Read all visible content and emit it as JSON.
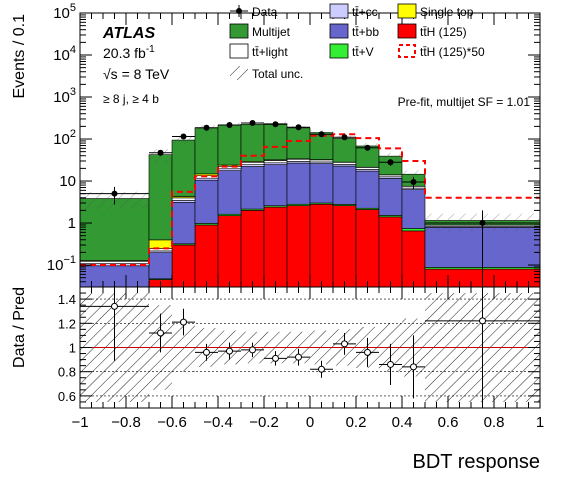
{
  "chart_data": [
    {
      "type": "bar",
      "panel": "main",
      "ylabel": "Events / 0.1",
      "log_y": true,
      "ylim": [
        0.03,
        100000
      ],
      "xlim": [
        -1,
        1
      ],
      "y_ticks": [
        {
          "v": 0.1,
          "base": "10",
          "exp": "−1"
        },
        {
          "v": 1,
          "label": "1"
        },
        {
          "v": 10,
          "label": "10"
        },
        {
          "v": 100,
          "base": "10",
          "exp": "2"
        },
        {
          "v": 1000,
          "base": "10",
          "exp": "3"
        },
        {
          "v": 10000,
          "base": "10",
          "exp": "4"
        },
        {
          "v": 100000,
          "base": "10",
          "exp": "5"
        }
      ],
      "bin_edges": [
        -1,
        -0.7,
        -0.6,
        -0.5,
        -0.4,
        -0.3,
        -0.2,
        -0.1,
        0,
        0.1,
        0.2,
        0.3,
        0.4,
        0.5,
        1
      ],
      "stack": [
        {
          "name": "tt̄H (125)",
          "color": "#ff0000",
          "values": [
            0.015,
            0.045,
            0.3,
            0.9,
            1.5,
            2.0,
            2.4,
            2.6,
            2.8,
            2.6,
            2.1,
            1.4,
            0.65,
            0.08
          ]
        },
        {
          "name": "tt̄+V",
          "color": "#33ee33",
          "values": [
            0.001,
            0.002,
            0.02,
            0.08,
            0.12,
            0.15,
            0.18,
            0.2,
            0.2,
            0.18,
            0.15,
            0.12,
            0.09,
            0.008
          ]
        },
        {
          "name": "tt̄+bb",
          "color": "#6666cc",
          "values": [
            0.08,
            0.15,
            2.8,
            9.5,
            16,
            20,
            22,
            24,
            23,
            20,
            15,
            10,
            5.5,
            0.7
          ]
        },
        {
          "name": "tt̄+cc",
          "color": "#ccccff",
          "values": [
            0.012,
            0.02,
            0.35,
            1.2,
            2.0,
            2.4,
            2.6,
            2.6,
            2.5,
            2.2,
            1.7,
            1.1,
            0.55,
            0.05
          ]
        },
        {
          "name": "tt̄+light",
          "color": "#ffffff",
          "values": [
            0.015,
            0.03,
            0.5,
            1.7,
            2.8,
            3.4,
            3.7,
            3.6,
            3.4,
            2.9,
            2.2,
            1.4,
            0.7,
            0.06
          ]
        },
        {
          "name": "Single top",
          "color": "#ffff00",
          "values": [
            0.005,
            0.15,
            0.3,
            1.4,
            1.6,
            1.4,
            1.1,
            0.8,
            0.5,
            0.3,
            0.15,
            0.08,
            0.03,
            0.004
          ]
        },
        {
          "name": "Multijet",
          "color": "#339933",
          "values": [
            3.7,
            42,
            90,
            170,
            190,
            195,
            200,
            150,
            110,
            75,
            47,
            25,
            7,
            0.25
          ]
        }
      ],
      "signal_x50": [
        0.1,
        0.25,
        5.5,
        13,
        22,
        40,
        65,
        90,
        120,
        130,
        105,
        60,
        30,
        4.0
      ],
      "data": [
        {
          "x": -0.85,
          "y": 5,
          "xerr": 0.15
        },
        {
          "x": -0.65,
          "y": 47,
          "xerr": 0.05
        },
        {
          "x": -0.55,
          "y": 115,
          "xerr": 0.05
        },
        {
          "x": -0.45,
          "y": 185,
          "xerr": 0.05
        },
        {
          "x": -0.35,
          "y": 215,
          "xerr": 0.05
        },
        {
          "x": -0.25,
          "y": 240,
          "xerr": 0.05
        },
        {
          "x": -0.15,
          "y": 225,
          "xerr": 0.05
        },
        {
          "x": -0.05,
          "y": 190,
          "xerr": 0.05
        },
        {
          "x": 0.05,
          "y": 130,
          "xerr": 0.05
        },
        {
          "x": 0.15,
          "y": 110,
          "xerr": 0.05
        },
        {
          "x": 0.25,
          "y": 62,
          "xerr": 0.05
        },
        {
          "x": 0.35,
          "y": 28,
          "xerr": 0.05
        },
        {
          "x": 0.45,
          "y": 9.5,
          "xerr": 0.05
        },
        {
          "x": 0.75,
          "y": 1.0,
          "xerr": 0.25
        }
      ],
      "legend": [
        {
          "label": "Data",
          "style": "data"
        },
        {
          "label": "tt̄+cc",
          "style": "fill",
          "color": "#ccccff"
        },
        {
          "label": "Single top",
          "style": "fill",
          "color": "#ffff00"
        },
        {
          "label": "Multijet",
          "style": "fill",
          "color": "#339933"
        },
        {
          "label": "tt̄+bb",
          "style": "fill",
          "color": "#6666cc"
        },
        {
          "label": "tt̄H (125)",
          "style": "fill",
          "color": "#ff0000"
        },
        {
          "label": "tt̄+light",
          "style": "fill",
          "color": "#ffffff"
        },
        {
          "label": "tt̄+V",
          "style": "fill",
          "color": "#33ee33"
        },
        {
          "label": "tt̄H (125)*50",
          "style": "dash",
          "color": "#ff0000"
        },
        {
          "label": "Total unc.",
          "style": "hatch"
        }
      ],
      "annotations": {
        "atlas": "ATLAS",
        "lumi": "20.3 fb",
        "lumi_exp": "-1",
        "energy_sym": "√s",
        "energy_val": " = 8 TeV",
        "selection": "≥ 8 j, ≥  4 b",
        "prefit": "Pre-fit, multijet SF = 1.01"
      }
    },
    {
      "type": "scatter",
      "panel": "ratio",
      "ylabel": "Data / Pred",
      "xlabel": "BDT response",
      "ylim": [
        0.5,
        1.5
      ],
      "xlim": [
        -1,
        1
      ],
      "y_ticks": [
        0.6,
        0.8,
        1,
        1.2,
        1.4
      ],
      "y_tick_labels": [
        "0.6",
        "0.8",
        "1",
        "1.2",
        "1.4"
      ],
      "x_ticks": [
        -1,
        -0.8,
        -0.6,
        -0.4,
        -0.2,
        0,
        0.2,
        0.4,
        0.6,
        0.8,
        1
      ],
      "x_tick_labels": [
        "−1",
        "−0.8",
        "−0.6",
        "−0.4",
        "−0.2",
        "0",
        "0.2",
        "0.4",
        "0.6",
        "0.8",
        "1"
      ],
      "reference_line": 1,
      "unc_band": [
        0.45,
        0.35,
        0.2,
        0.16,
        0.14,
        0.13,
        0.13,
        0.13,
        0.14,
        0.15,
        0.17,
        0.2,
        0.24,
        0.45
      ],
      "points": [
        {
          "x": -0.85,
          "y": 1.34,
          "xerr": 0.15,
          "yerr": 0.45
        },
        {
          "x": -0.65,
          "y": 1.12,
          "xerr": 0.05,
          "yerr": 0.16
        },
        {
          "x": -0.55,
          "y": 1.21,
          "xerr": 0.05,
          "yerr": 0.11
        },
        {
          "x": -0.45,
          "y": 0.96,
          "xerr": 0.05,
          "yerr": 0.07
        },
        {
          "x": -0.35,
          "y": 0.97,
          "xerr": 0.05,
          "yerr": 0.07
        },
        {
          "x": -0.25,
          "y": 0.98,
          "xerr": 0.05,
          "yerr": 0.06
        },
        {
          "x": -0.15,
          "y": 0.91,
          "xerr": 0.05,
          "yerr": 0.06
        },
        {
          "x": -0.05,
          "y": 0.92,
          "xerr": 0.05,
          "yerr": 0.07
        },
        {
          "x": 0.05,
          "y": 0.82,
          "xerr": 0.05,
          "yerr": 0.07
        },
        {
          "x": 0.15,
          "y": 1.03,
          "xerr": 0.05,
          "yerr": 0.09
        },
        {
          "x": 0.25,
          "y": 0.96,
          "xerr": 0.05,
          "yerr": 0.12
        },
        {
          "x": 0.35,
          "y": 0.86,
          "xerr": 0.05,
          "yerr": 0.17
        },
        {
          "x": 0.45,
          "y": 0.84,
          "xerr": 0.05,
          "yerr": 0.26
        },
        {
          "x": 0.75,
          "y": 1.22,
          "xerr": 0.25,
          "yerr": 1.0
        }
      ]
    }
  ]
}
